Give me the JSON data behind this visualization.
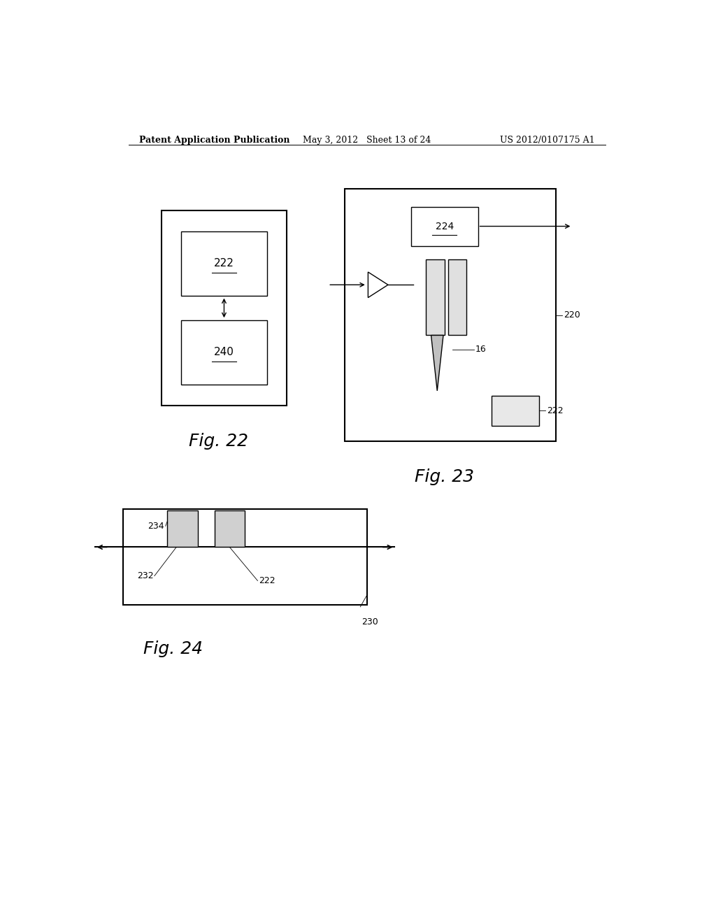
{
  "bg_color": "#ffffff",
  "text_color": "#000000",
  "header_left": "Patent Application Publication",
  "header_mid": "May 3, 2012   Sheet 13 of 24",
  "header_right": "US 2012/0107175 A1",
  "fig22_caption": "Fig. 22",
  "fig23_caption": "Fig. 23",
  "fig24_caption": "Fig. 24",
  "lw_main": 1.5,
  "lw_thin": 1.0,
  "fs_label": 11,
  "fs_header": 9,
  "fs_caption": 18,
  "fs_annot": 9
}
